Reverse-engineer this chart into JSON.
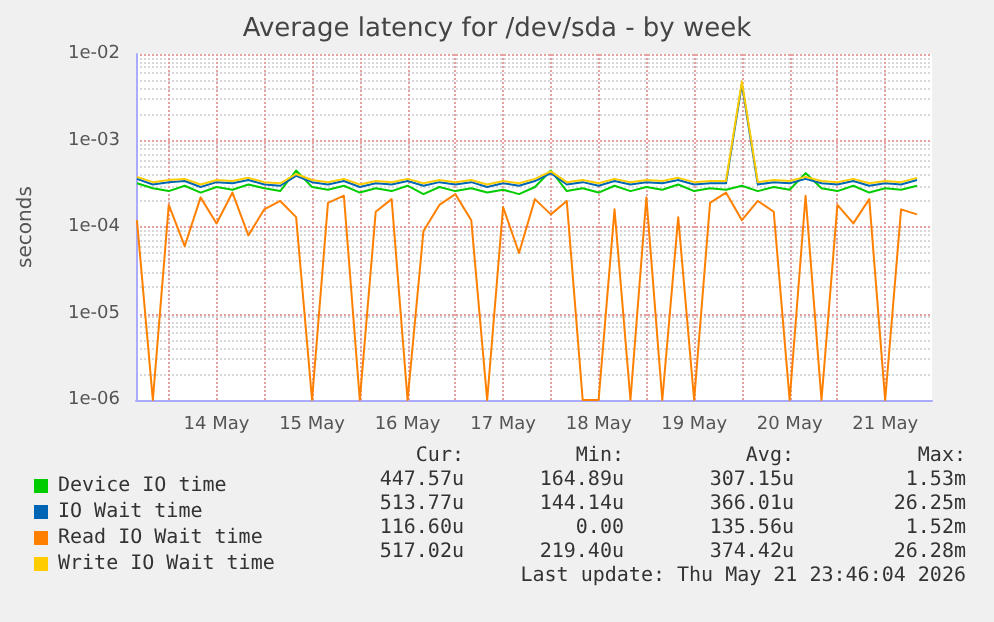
{
  "chart_data": {
    "type": "line",
    "title": "Average latency for /dev/sda - by week",
    "ylabel": "seconds",
    "log": true,
    "grid": true,
    "legend": "bottom",
    "marker": "none",
    "line_style": "solid",
    "x": [
      "2026-05-13T16:00",
      "2026-05-13T20:00",
      "2026-05-14T00:00",
      "2026-05-14T04:00",
      "2026-05-14T08:00",
      "2026-05-14T12:00",
      "2026-05-14T16:00",
      "2026-05-14T20:00",
      "2026-05-15T00:00",
      "2026-05-15T04:00",
      "2026-05-15T08:00",
      "2026-05-15T12:00",
      "2026-05-15T16:00",
      "2026-05-15T20:00",
      "2026-05-16T00:00",
      "2026-05-16T04:00",
      "2026-05-16T08:00",
      "2026-05-16T12:00",
      "2026-05-16T16:00",
      "2026-05-16T20:00",
      "2026-05-17T00:00",
      "2026-05-17T04:00",
      "2026-05-17T08:00",
      "2026-05-17T12:00",
      "2026-05-17T16:00",
      "2026-05-17T20:00",
      "2026-05-18T00:00",
      "2026-05-18T04:00",
      "2026-05-18T08:00",
      "2026-05-18T12:00",
      "2026-05-18T16:00",
      "2026-05-18T20:00",
      "2026-05-19T00:00",
      "2026-05-19T04:00",
      "2026-05-19T08:00",
      "2026-05-19T12:00",
      "2026-05-19T16:00",
      "2026-05-19T20:00",
      "2026-05-20T00:00",
      "2026-05-20T04:00",
      "2026-05-20T08:00",
      "2026-05-20T12:00",
      "2026-05-20T16:00",
      "2026-05-20T20:00",
      "2026-05-21T00:00",
      "2026-05-21T04:00",
      "2026-05-21T08:00",
      "2026-05-21T12:00",
      "2026-05-21T16:00",
      "2026-05-21T20:00"
    ],
    "xlim": [
      "2026-05-13T15:46",
      "2026-05-21T23:46"
    ],
    "xticks": [
      {
        "value": "2026-05-14T00:00",
        "label": null
      },
      {
        "value": "2026-05-14T12:00",
        "label": "14 May"
      },
      {
        "value": "2026-05-15T00:00",
        "label": null
      },
      {
        "value": "2026-05-15T12:00",
        "label": "15 May"
      },
      {
        "value": "2026-05-16T00:00",
        "label": null
      },
      {
        "value": "2026-05-16T12:00",
        "label": "16 May"
      },
      {
        "value": "2026-05-17T00:00",
        "label": null
      },
      {
        "value": "2026-05-17T12:00",
        "label": "17 May"
      },
      {
        "value": "2026-05-18T00:00",
        "label": null
      },
      {
        "value": "2026-05-18T12:00",
        "label": "18 May"
      },
      {
        "value": "2026-05-19T00:00",
        "label": null
      },
      {
        "value": "2026-05-19T12:00",
        "label": "19 May"
      },
      {
        "value": "2026-05-20T00:00",
        "label": null
      },
      {
        "value": "2026-05-20T12:00",
        "label": "20 May"
      },
      {
        "value": "2026-05-21T00:00",
        "label": null
      },
      {
        "value": "2026-05-21T12:00",
        "label": "21 May"
      }
    ],
    "ylim": [
      1e-06,
      0.01
    ],
    "yticks": [
      {
        "value": 1e-06,
        "label": "1e-06"
      },
      {
        "value": 1e-05,
        "label": "1e-05"
      },
      {
        "value": 0.0001,
        "label": "1e-04"
      },
      {
        "value": 0.001,
        "label": "1e-03"
      },
      {
        "value": 0.01,
        "label": "1e-02"
      }
    ],
    "series": [
      {
        "name": "Device IO time",
        "color": "#00cc00",
        "values": [
          0.00032,
          0.00028,
          0.00026,
          0.0003,
          0.00025,
          0.00029,
          0.00027,
          0.00031,
          0.00028,
          0.00026,
          0.00045,
          0.00029,
          0.00027,
          0.0003,
          0.00025,
          0.00028,
          0.00026,
          0.0003,
          0.00024,
          0.00029,
          0.00026,
          0.00028,
          0.00025,
          0.00027,
          0.00024,
          0.00029,
          0.00045,
          0.00026,
          0.00028,
          0.00025,
          0.0003,
          0.00026,
          0.00029,
          0.00027,
          0.00031,
          0.00026,
          0.00028,
          0.00027,
          0.0003,
          0.00026,
          0.00029,
          0.00027,
          0.00042,
          0.00028,
          0.00026,
          0.0003,
          0.00025,
          0.00028,
          0.00027,
          0.0003
        ]
      },
      {
        "name": "IO Wait time",
        "color": "#0066b3",
        "values": [
          0.00036,
          0.00031,
          0.00033,
          0.00034,
          0.00029,
          0.00033,
          0.00032,
          0.00035,
          0.00031,
          0.0003,
          0.00039,
          0.00033,
          0.00031,
          0.00034,
          0.00029,
          0.00032,
          0.00031,
          0.00034,
          0.0003,
          0.00033,
          0.00031,
          0.00033,
          0.00029,
          0.00032,
          0.0003,
          0.00034,
          0.00042,
          0.00031,
          0.00033,
          0.0003,
          0.00034,
          0.00031,
          0.00033,
          0.00032,
          0.00035,
          0.00031,
          0.00032,
          0.00032,
          0.0045,
          0.00031,
          0.00033,
          0.00032,
          0.00036,
          0.00032,
          0.00031,
          0.00034,
          0.0003,
          0.00032,
          0.00031,
          0.00035
        ]
      },
      {
        "name": "Read IO Wait time",
        "color": "#ff8000",
        "values": [
          0.00012,
          1e-06,
          0.00018,
          6e-05,
          0.00022,
          0.00011,
          0.00025,
          8e-05,
          0.00016,
          0.0002,
          0.00013,
          1e-06,
          0.00019,
          0.00023,
          1e-06,
          0.00015,
          0.00021,
          1e-06,
          9e-05,
          0.00018,
          0.00024,
          0.00012,
          1e-06,
          0.00017,
          5e-05,
          0.00021,
          0.00014,
          0.0002,
          1e-06,
          1e-06,
          0.00016,
          1e-06,
          0.00022,
          1e-06,
          0.00013,
          1e-06,
          0.00019,
          0.00025,
          0.00012,
          0.0002,
          0.00015,
          1e-06,
          0.00023,
          1e-06,
          0.00018,
          0.00011,
          0.00021,
          1e-06,
          0.00016,
          0.00014
        ]
      },
      {
        "name": "Write IO Wait time",
        "color": "#ffcc00",
        "values": [
          0.00038,
          0.00033,
          0.00035,
          0.00036,
          0.00031,
          0.00035,
          0.00034,
          0.00037,
          0.00033,
          0.00032,
          0.00041,
          0.00035,
          0.00033,
          0.00036,
          0.00031,
          0.00034,
          0.00033,
          0.00036,
          0.00032,
          0.00035,
          0.00033,
          0.00035,
          0.00031,
          0.00034,
          0.00032,
          0.00036,
          0.00044,
          0.00033,
          0.00035,
          0.00032,
          0.00036,
          0.00033,
          0.00035,
          0.00034,
          0.00037,
          0.00033,
          0.00034,
          0.00034,
          0.0048,
          0.00033,
          0.00035,
          0.00034,
          0.00038,
          0.00034,
          0.00033,
          0.00036,
          0.00032,
          0.00034,
          0.00033,
          0.00037
        ]
      }
    ],
    "annotations": [
      "Cur:",
      "Min:",
      "Avg:",
      "Max:",
      "447.57u",
      "164.89u",
      "307.15u",
      "1.53m",
      "513.77u",
      "144.14u",
      "366.01u",
      "26.25m",
      "116.60u",
      "0.00",
      "135.56u",
      "1.52m",
      "517.02u",
      "219.40u",
      "374.42u",
      "26.28m",
      "Last update: Thu May 21 23:46:04 2026"
    ]
  }
}
